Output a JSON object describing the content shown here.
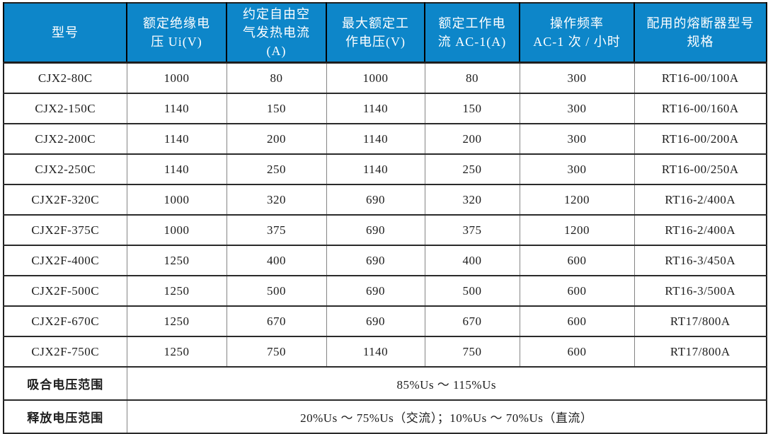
{
  "colors": {
    "header_bg": "#0d86c9",
    "header_text": "#ffffff",
    "header_divider": "#000000",
    "grid_vertical_gray": "#848484",
    "grid_horizontal_dark": "#2a2a2a",
    "outer_border": "#1f1f1f",
    "body_text": "#1c1c1c"
  },
  "table": {
    "columns": [
      {
        "name": "model",
        "label": "型号",
        "lines": [
          "型号"
        ]
      },
      {
        "name": "rated-insulation-voltage",
        "label": "额定绝缘电压 Ui(V)",
        "lines": [
          "额定绝缘电",
          "压 Ui(V)"
        ]
      },
      {
        "name": "conventional-free-air-thermal-current",
        "label": "约定自由空气发热电流(A)",
        "lines": [
          "约定自由空",
          "气发热电流",
          "(A)"
        ]
      },
      {
        "name": "max-rated-operating-voltage",
        "label": "最大额定工作电压(V)",
        "lines": [
          "最大额定工",
          "作电压(V)"
        ]
      },
      {
        "name": "rated-operating-current-ac1",
        "label": "额定工作电流 AC-1(A)",
        "lines": [
          "额定工作电",
          "流 AC-1(A)"
        ]
      },
      {
        "name": "operating-frequency",
        "label": "操作频率 AC-1 次 / 小时",
        "lines": [
          "操作频率",
          "AC-1 次 / 小时"
        ]
      },
      {
        "name": "matching-fuse-spec",
        "label": "配用的熔断器型号规格",
        "lines": [
          "配用的熔断器型号",
          "规格"
        ]
      }
    ],
    "rows": [
      [
        "CJX2-80C",
        "1000",
        "80",
        "1000",
        "80",
        "300",
        "RT16-00/100A"
      ],
      [
        "CJX2-150C",
        "1140",
        "150",
        "1140",
        "150",
        "300",
        "RT16-00/160A"
      ],
      [
        "CJX2-200C",
        "1140",
        "200",
        "1140",
        "200",
        "300",
        "RT16-00/200A"
      ],
      [
        "CJX2-250C",
        "1140",
        "250",
        "1140",
        "250",
        "300",
        "RT16-00/250A"
      ],
      [
        "CJX2F-320C",
        "1000",
        "320",
        "690",
        "320",
        "1200",
        "RT16-2/400A"
      ],
      [
        "CJX2F-375C",
        "1000",
        "375",
        "690",
        "375",
        "1200",
        "RT16-2/400A"
      ],
      [
        "CJX2F-400C",
        "1250",
        "400",
        "690",
        "400",
        "600",
        "RT16-3/450A"
      ],
      [
        "CJX2F-500C",
        "1250",
        "500",
        "690",
        "500",
        "600",
        "RT16-3/500A"
      ],
      [
        "CJX2F-670C",
        "1250",
        "670",
        "690",
        "670",
        "600",
        "RT17/800A"
      ],
      [
        "CJX2F-750C",
        "1250",
        "750",
        "1140",
        "750",
        "600",
        "RT17/800A"
      ]
    ],
    "footer_rows": [
      {
        "name": "pickup-voltage-range",
        "label": "吸合电压范围",
        "value": "85%Us ～ 115%Us"
      },
      {
        "name": "release-voltage-range",
        "label": "释放电压范围",
        "value": "20%Us ～ 75%Us（交流）；10%Us ～ 70%Us（直流）"
      }
    ]
  }
}
